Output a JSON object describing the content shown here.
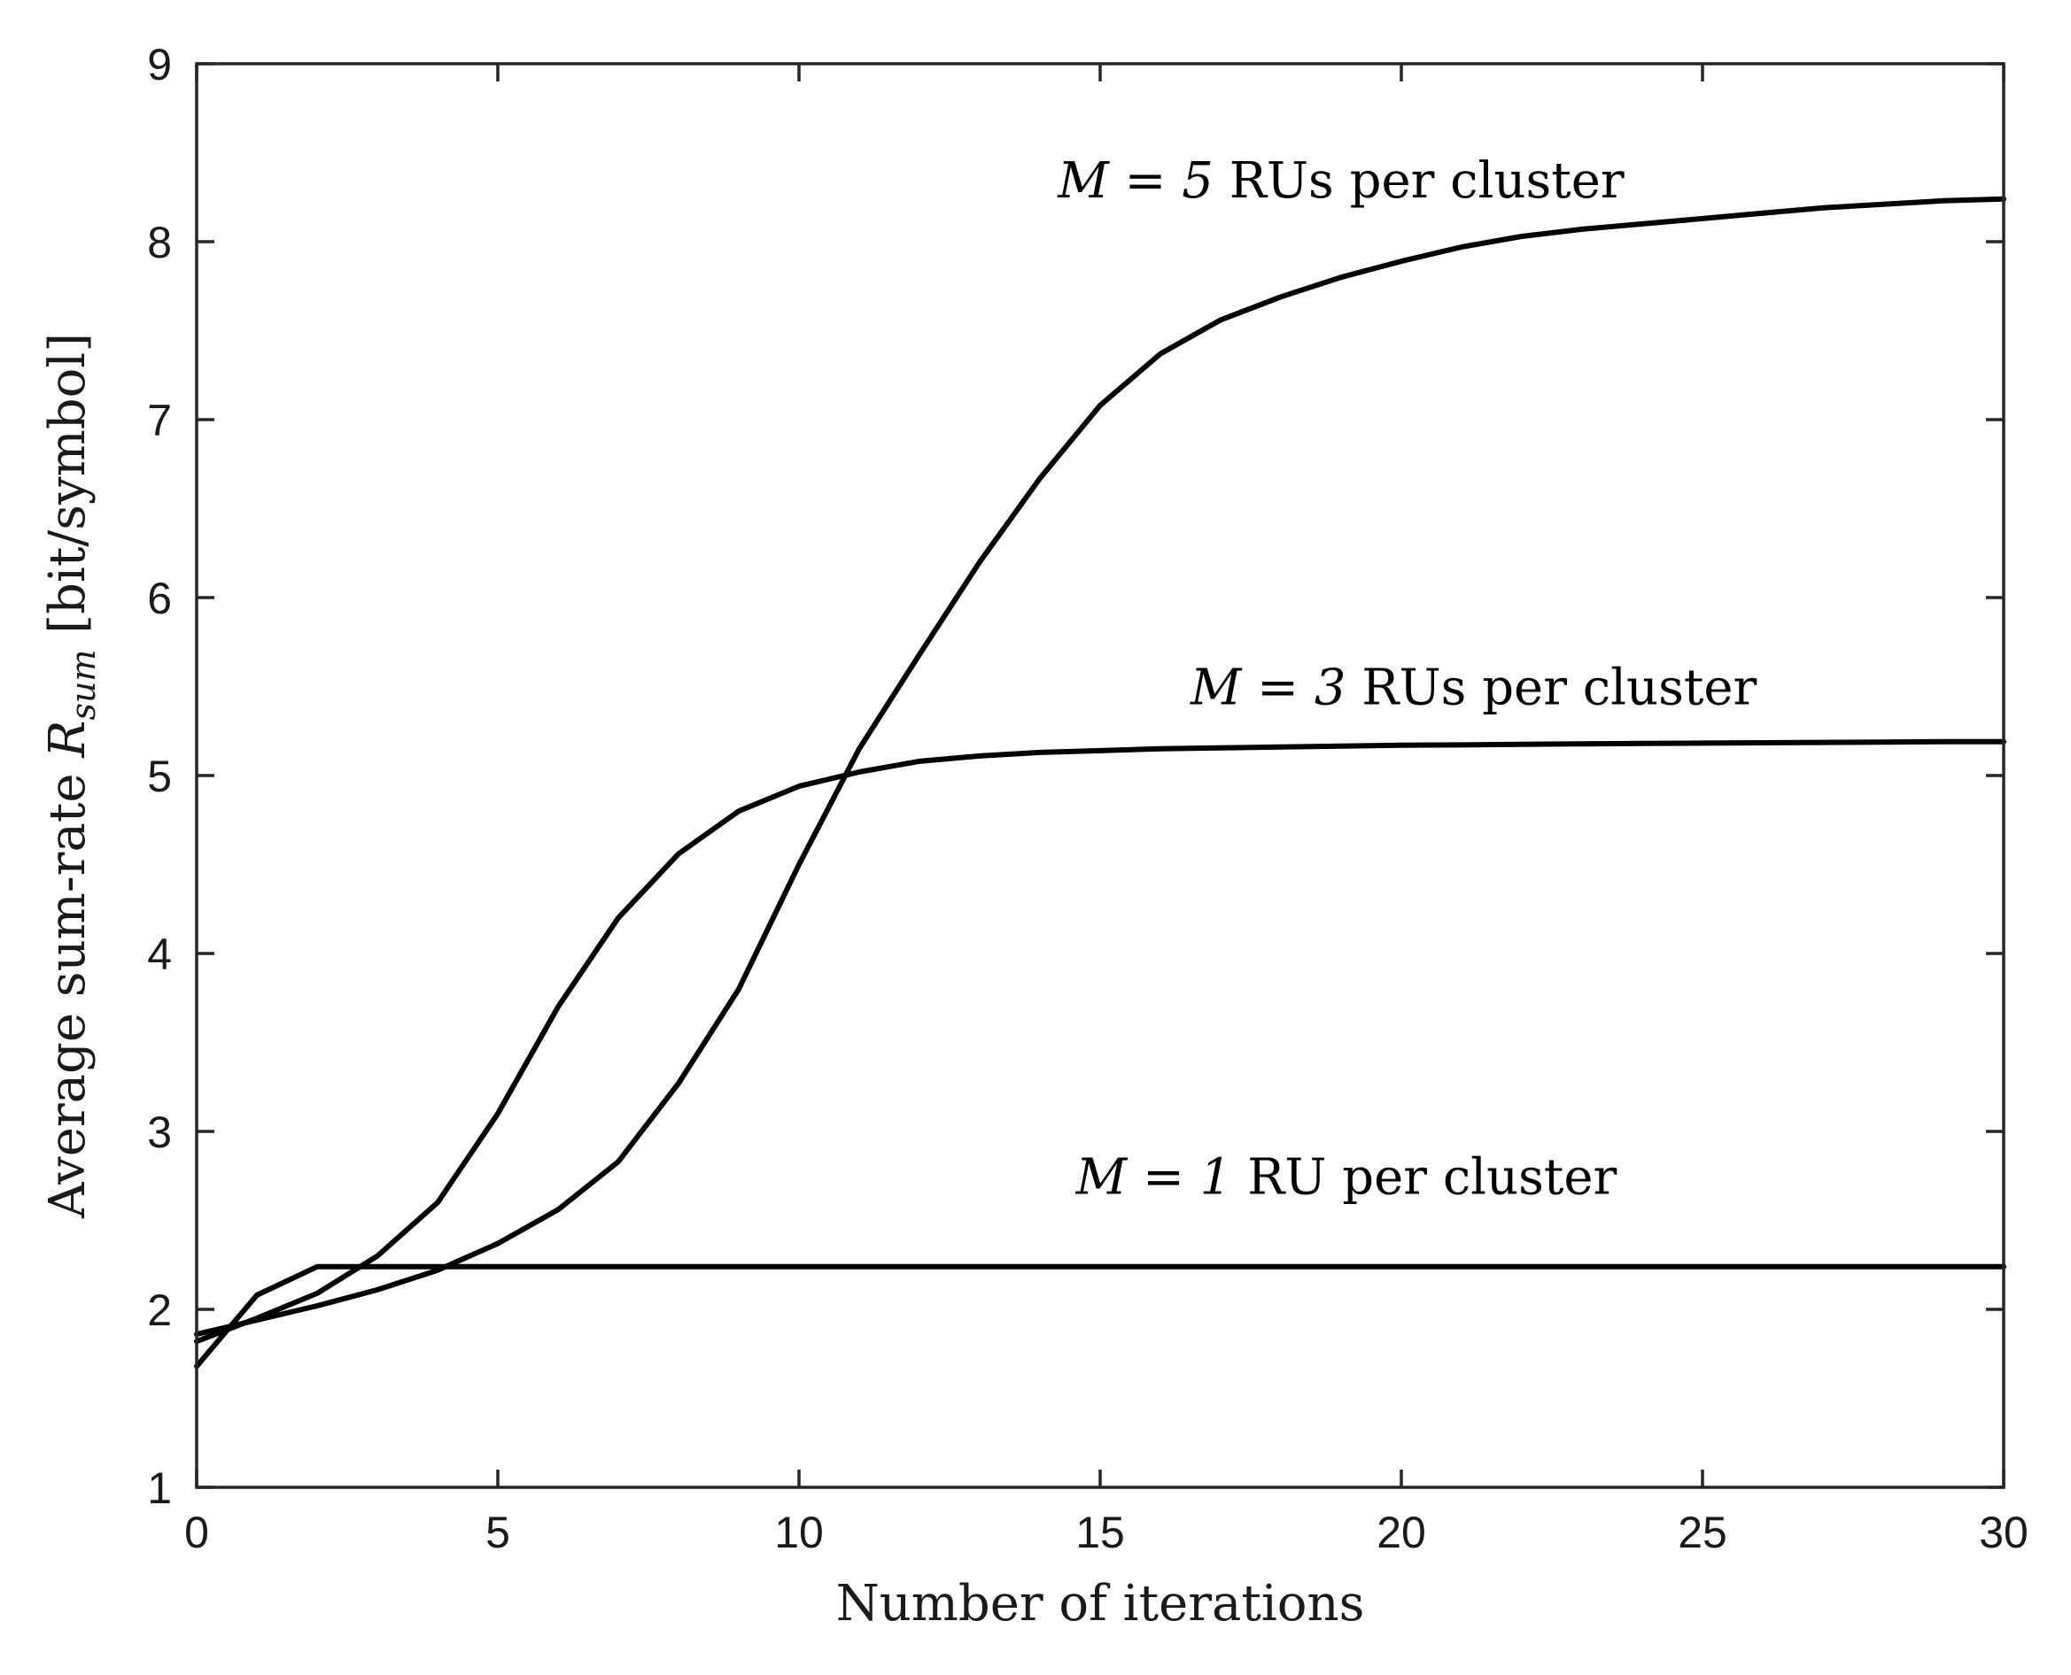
{
  "chart_data": {
    "type": "line",
    "xlabel": "Number of iterations",
    "ylabel": "Average sum-rate R_sum [bit/symbol]",
    "ylabel_parts": {
      "prefix": "Average sum-rate ",
      "symbol": "R",
      "subscript": "sum",
      "suffix": " [bit/symbol]"
    },
    "xlim": [
      0,
      30
    ],
    "ylim": [
      1,
      9
    ],
    "xticks": [
      0,
      5,
      10,
      15,
      20,
      25,
      30
    ],
    "yticks": [
      1,
      2,
      3,
      4,
      5,
      6,
      7,
      8,
      9
    ],
    "grid": false,
    "legend": "none",
    "series": [
      {
        "x": [
          0,
          1,
          2,
          3,
          4,
          5,
          6,
          7,
          8,
          9,
          10,
          11,
          12,
          13,
          14,
          15,
          16,
          17,
          18,
          19,
          20,
          21,
          22,
          23,
          24,
          25,
          26,
          27,
          28,
          29,
          30
        ],
        "values": [
          1.68,
          2.08,
          2.24,
          2.24,
          2.24,
          2.24,
          2.24,
          2.24,
          2.24,
          2.24,
          2.24,
          2.24,
          2.24,
          2.24,
          2.24,
          2.24,
          2.24,
          2.24,
          2.24,
          2.24,
          2.24,
          2.24,
          2.24,
          2.24,
          2.24,
          2.24,
          2.24,
          2.24,
          2.24,
          2.24,
          2.24
        ]
      },
      {
        "x": [
          0,
          1,
          2,
          3,
          4,
          5,
          6,
          7,
          8,
          9,
          10,
          11,
          12,
          13,
          14,
          15,
          16,
          17,
          18,
          19,
          20,
          21,
          22,
          23,
          24,
          25,
          26,
          27,
          28,
          29,
          30
        ],
        "values": [
          1.82,
          1.95,
          2.09,
          2.3,
          2.6,
          3.1,
          3.7,
          4.2,
          4.56,
          4.8,
          4.94,
          5.02,
          5.08,
          5.11,
          5.13,
          5.14,
          5.15,
          5.155,
          5.16,
          5.165,
          5.17,
          5.172,
          5.175,
          5.178,
          5.18,
          5.182,
          5.184,
          5.186,
          5.188,
          5.19,
          5.19
        ]
      },
      {
        "x": [
          0,
          1,
          2,
          3,
          4,
          5,
          6,
          7,
          8,
          9,
          10,
          11,
          12,
          13,
          14,
          15,
          16,
          17,
          18,
          19,
          20,
          21,
          22,
          23,
          24,
          25,
          26,
          27,
          28,
          29,
          30
        ],
        "values": [
          1.86,
          1.94,
          2.02,
          2.11,
          2.22,
          2.37,
          2.56,
          2.83,
          3.27,
          3.8,
          4.5,
          5.15,
          5.68,
          6.2,
          6.67,
          7.08,
          7.37,
          7.56,
          7.69,
          7.8,
          7.89,
          7.97,
          8.03,
          8.07,
          8.1,
          8.13,
          8.16,
          8.19,
          8.21,
          8.23,
          8.24
        ]
      }
    ],
    "annotations": [
      {
        "math": "M = 5",
        "text": " RUs per cluster",
        "x": 14.3,
        "y": 8.25
      },
      {
        "math": "M = 3",
        "text": " RUs per cluster",
        "x": 16.5,
        "y": 5.4
      },
      {
        "math": "M = 1",
        "text": " RU per cluster",
        "x": 14.6,
        "y": 2.65
      }
    ]
  }
}
